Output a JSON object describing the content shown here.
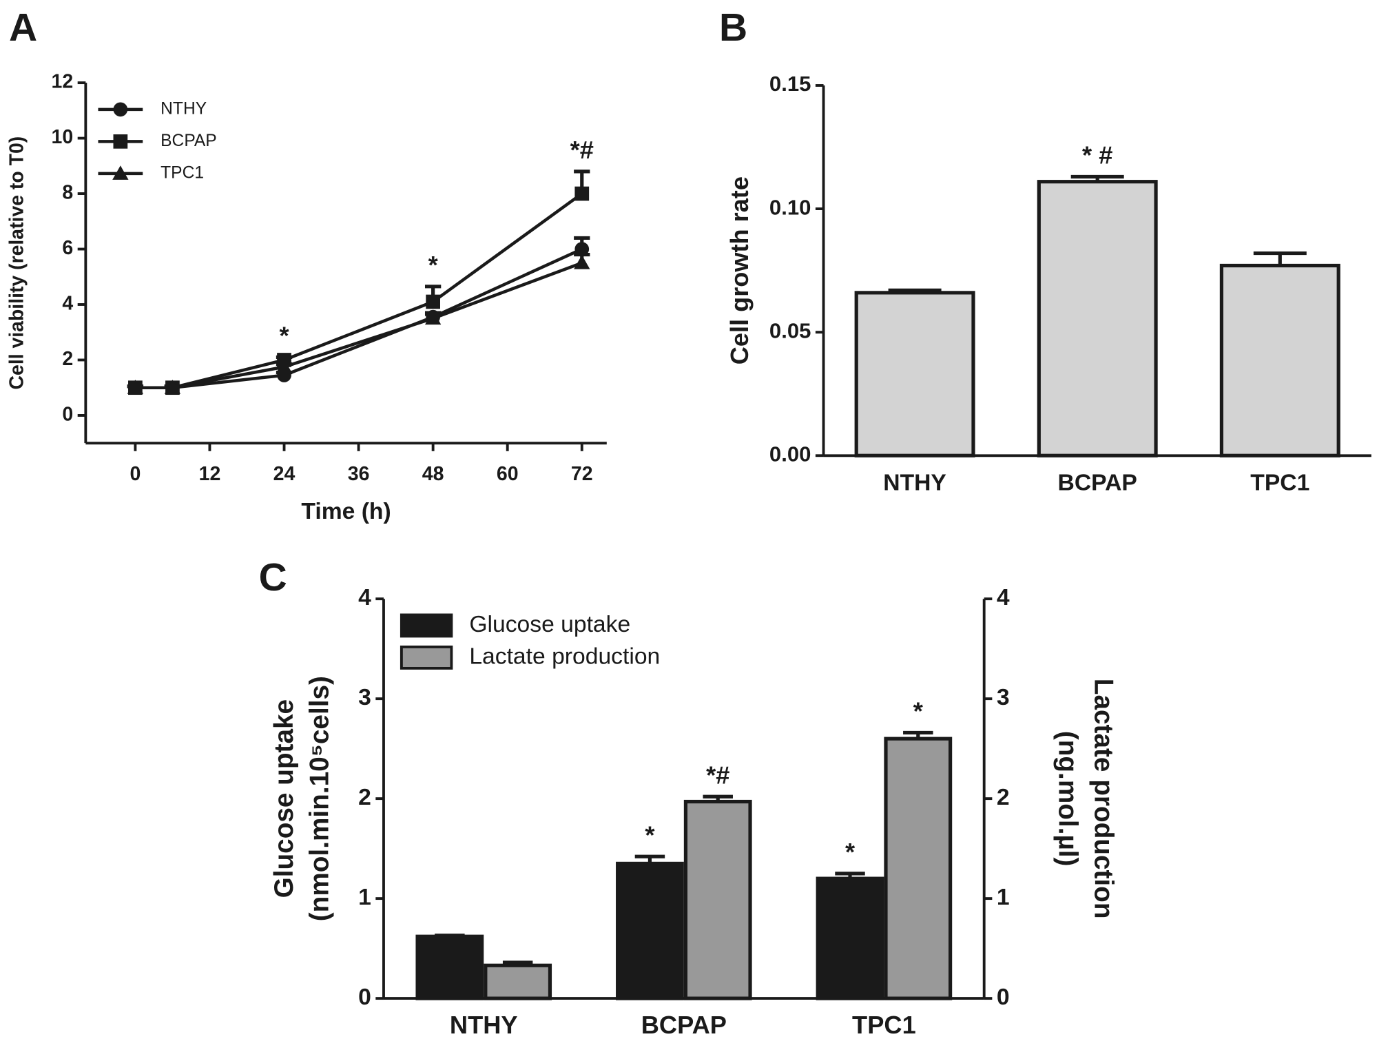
{
  "chart_data": [
    {
      "type": "line",
      "panel_label": "A",
      "xlabel": "Time (h)",
      "ylabel": "Cell viability (relative to T0)",
      "x": [
        0,
        6,
        24,
        48,
        72
      ],
      "series": [
        {
          "name": "NTHY",
          "color": "#1a1a1a",
          "marker": "circle",
          "values": [
            1,
            1,
            1.45,
            3.55,
            6.0
          ],
          "errors": [
            0.05,
            0.05,
            0.1,
            0.15,
            0.4
          ]
        },
        {
          "name": "BCPAP",
          "color": "#1a1a1a",
          "marker": "square",
          "values": [
            1,
            1,
            2.0,
            4.1,
            8.0
          ],
          "errors": [
            0.05,
            0.05,
            0.1,
            0.55,
            0.8
          ]
        },
        {
          "name": "TPC1",
          "color": "#1a1a1a",
          "marker": "triangle",
          "values": [
            1,
            1,
            1.75,
            3.5,
            5.5
          ],
          "errors": [
            0.05,
            0.05,
            0.1,
            0.15,
            0.3
          ]
        }
      ],
      "annotations": [
        {
          "text": "*",
          "x": 24
        },
        {
          "text": "*",
          "x": 48
        },
        {
          "text": "*#",
          "x": 72
        }
      ],
      "xlim": [
        -8,
        76
      ],
      "xticks": [
        0,
        12,
        24,
        36,
        48,
        60,
        72
      ],
      "ylim": [
        -1,
        12
      ],
      "yticks": [
        0,
        2,
        4,
        6,
        8,
        10,
        12
      ],
      "legend": "top-left"
    },
    {
      "type": "bar",
      "panel_label": "B",
      "ylabel": "Cell growth rate",
      "categories": [
        "NTHY",
        "BCPAP",
        "TPC1"
      ],
      "values": [
        0.066,
        0.111,
        0.077
      ],
      "errors": [
        0.001,
        0.002,
        0.005
      ],
      "annotations": [
        null,
        "* #",
        null
      ],
      "color": "#d3d3d3",
      "ylim": [
        0,
        0.15
      ],
      "yticks": [
        {
          "value": 0,
          "label": "0.00"
        },
        {
          "value": 0.05,
          "label": "0.05"
        },
        {
          "value": 0.1,
          "label": "0.10"
        },
        {
          "value": 0.15,
          "label": "0.15"
        }
      ]
    },
    {
      "type": "grouped_bar",
      "panel_label": "C",
      "ylabel": [
        "Glucose uptake",
        "(nmol.min.10⁵cells)"
      ],
      "y2label": [
        "Lactate production",
        "(ng.mol.µl)"
      ],
      "categories": [
        "NTHY",
        "BCPAP",
        "TPC1"
      ],
      "series": [
        {
          "name": "Glucose uptake",
          "color": "#1a1a1a",
          "values": [
            0.62,
            1.35,
            1.2
          ],
          "errors": [
            0.01,
            0.07,
            0.05
          ],
          "annotations": [
            null,
            "*",
            "*"
          ]
        },
        {
          "name": "Lactate production",
          "color": "#999999",
          "axis": "y2",
          "values": [
            0.33,
            1.97,
            2.6
          ],
          "errors": [
            0.03,
            0.05,
            0.06
          ],
          "annotations": [
            null,
            "*#",
            "*"
          ]
        }
      ],
      "ylim": [
        0,
        4
      ],
      "yticks": [
        0,
        1,
        2,
        3,
        4
      ],
      "y2lim": [
        0,
        4
      ],
      "y2ticks": [
        0,
        1,
        2,
        3,
        4
      ],
      "legend": "top-left"
    }
  ]
}
